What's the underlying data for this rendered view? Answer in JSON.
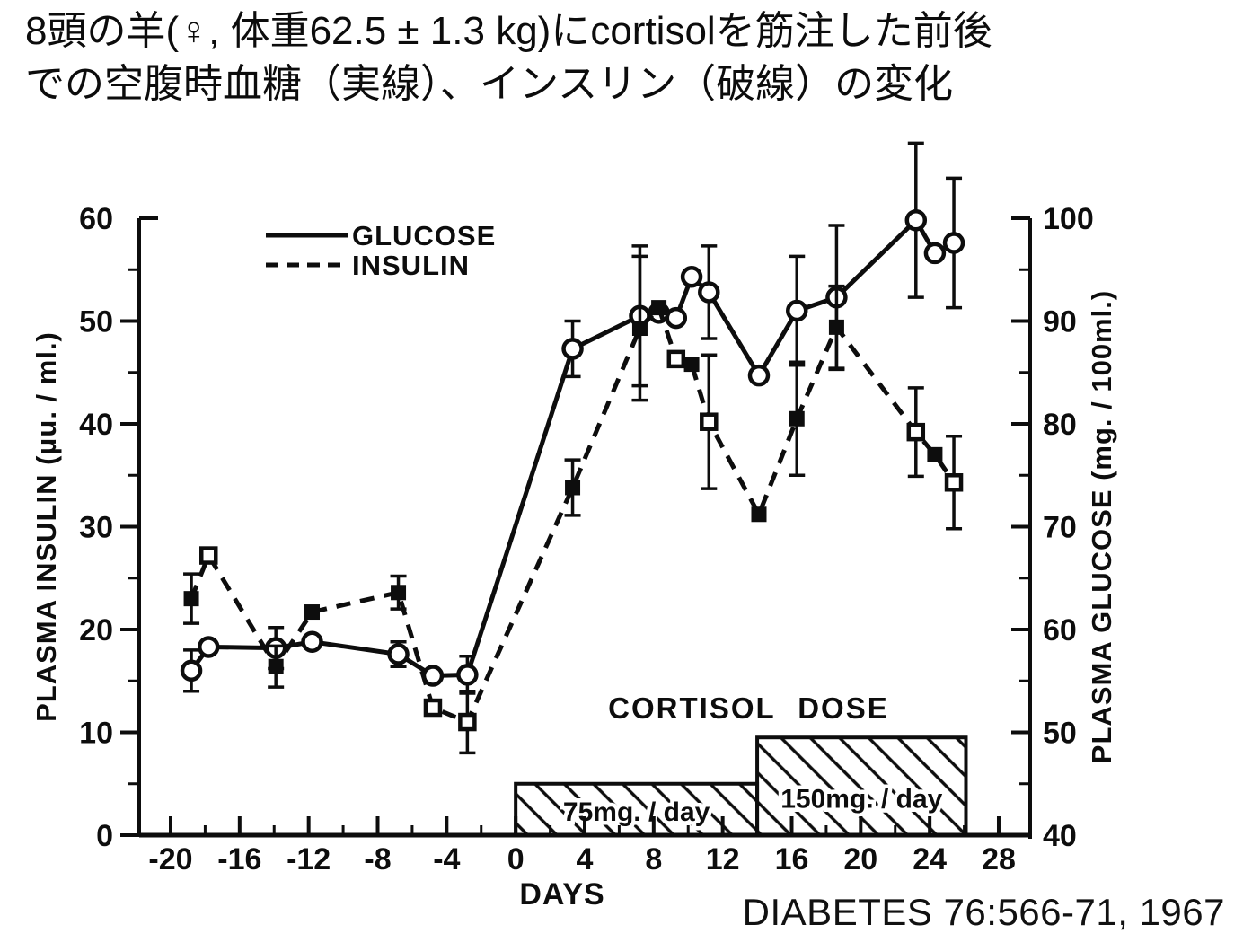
{
  "title": {
    "line1": "8頭の羊(♀, 体重62.5 ± 1.3 kg)にcortisolを筋注した前後",
    "line2": "での空腹時血糖（実線）、インスリン（破線）の変化"
  },
  "citation": "DIABETES 76:566-71, 1967",
  "colors": {
    "ink": "#0d0d0d",
    "background": "#ffffff"
  },
  "chart_data": {
    "type": "line",
    "xlabel": "DAYS",
    "x_axis": {
      "min": -20,
      "max": 28,
      "ticks": [
        -20,
        -16,
        -12,
        -8,
        -4,
        0,
        4,
        8,
        12,
        16,
        20,
        24,
        28
      ],
      "minor_step": 2
    },
    "left_axis": {
      "label": "PLASMA INSULIN (μu. / ml.)",
      "min": 0,
      "max": 60,
      "ticks": [
        0,
        10,
        20,
        30,
        40,
        50,
        60
      ],
      "minor_step": 5
    },
    "right_axis": {
      "label": "PLASMA GLUCOSE (mg. / 100ml.)",
      "min": 40,
      "max": 100,
      "ticks": [
        40,
        50,
        60,
        70,
        80,
        90,
        100
      ],
      "minor_step": 5
    },
    "legend": [
      {
        "label": "GLUCOSE",
        "style": "solid"
      },
      {
        "label": "INSULIN",
        "style": "dashed"
      }
    ],
    "series": [
      {
        "name": "GLUCOSE",
        "axis": "right",
        "line": "solid",
        "marker_default": "open-circle",
        "points": [
          {
            "day": -18.8,
            "value": 56.0,
            "err": 2.0
          },
          {
            "day": -17.8,
            "value": 58.3,
            "err": 0
          },
          {
            "day": -13.9,
            "value": 58.2,
            "err": 2.0
          },
          {
            "day": -11.8,
            "value": 58.8,
            "err": 0
          },
          {
            "day": -6.8,
            "value": 57.6,
            "err": 1.2
          },
          {
            "day": -4.8,
            "value": 55.5,
            "err": 0
          },
          {
            "day": -2.8,
            "value": 55.6,
            "err": 1.8
          },
          {
            "day": 3.3,
            "value": 87.3,
            "err": 2.7
          },
          {
            "day": 7.2,
            "value": 90.5,
            "err": 6.8
          },
          {
            "day": 8.3,
            "value": 90.8,
            "err": 0
          },
          {
            "day": 9.3,
            "value": 90.3,
            "err": 0
          },
          {
            "day": 10.2,
            "value": 94.3,
            "err": 0
          },
          {
            "day": 11.2,
            "value": 92.8,
            "err": 4.5
          },
          {
            "day": 14.1,
            "value": 84.7,
            "err": 0
          },
          {
            "day": 16.3,
            "value": 91.0,
            "err": 5.3
          },
          {
            "day": 18.6,
            "value": 92.3,
            "err": 7.0
          },
          {
            "day": 23.2,
            "value": 99.8,
            "err": 7.5
          },
          {
            "day": 24.3,
            "value": 96.6,
            "err": 0
          },
          {
            "day": 25.4,
            "value": 97.6,
            "err": 6.3
          }
        ]
      },
      {
        "name": "INSULIN",
        "axis": "left",
        "line": "dashed",
        "marker_default": "filled-square",
        "points": [
          {
            "day": -18.8,
            "value": 23.0,
            "err": 2.4,
            "marker": "filled-square"
          },
          {
            "day": -17.8,
            "value": 27.2,
            "err": 0,
            "marker": "open-square"
          },
          {
            "day": -13.9,
            "value": 16.4,
            "err": 2.0,
            "marker": "filled-square"
          },
          {
            "day": -11.8,
            "value": 21.7,
            "err": 0,
            "marker": "filled-square"
          },
          {
            "day": -6.8,
            "value": 23.6,
            "err": 1.6,
            "marker": "filled-square"
          },
          {
            "day": -4.8,
            "value": 12.4,
            "err": 0,
            "marker": "open-square"
          },
          {
            "day": -2.8,
            "value": 11.0,
            "err": 3.0,
            "marker": "open-square"
          },
          {
            "day": 3.3,
            "value": 33.8,
            "err": 2.7,
            "marker": "filled-square"
          },
          {
            "day": 7.2,
            "value": 49.3,
            "err": 7.0,
            "marker": "filled-square"
          },
          {
            "day": 8.3,
            "value": 51.3,
            "err": 0,
            "marker": "filled-square"
          },
          {
            "day": 9.3,
            "value": 46.3,
            "err": 0,
            "marker": "open-square"
          },
          {
            "day": 10.2,
            "value": 45.8,
            "err": 0,
            "marker": "filled-square"
          },
          {
            "day": 11.2,
            "value": 40.2,
            "err": 6.5,
            "marker": "open-square"
          },
          {
            "day": 14.1,
            "value": 31.2,
            "err": 0,
            "marker": "filled-square"
          },
          {
            "day": 16.3,
            "value": 40.5,
            "err": 5.5,
            "marker": "filled-square"
          },
          {
            "day": 18.6,
            "value": 49.4,
            "err": 4.0,
            "marker": "filled-square"
          },
          {
            "day": 23.2,
            "value": 39.2,
            "err": 4.3,
            "marker": "open-square"
          },
          {
            "day": 24.3,
            "value": 37.0,
            "err": 0,
            "marker": "filled-square"
          },
          {
            "day": 25.4,
            "value": 34.3,
            "err": 4.5,
            "marker": "open-square"
          }
        ]
      }
    ],
    "cortisol_dose": {
      "label": "CORTISOL DOSE",
      "boxes": [
        {
          "label": "75mg. / day",
          "day_start": 0,
          "day_end": 14,
          "height_units": 5.0
        },
        {
          "label": "150mg. / day",
          "day_start": 14,
          "day_end": 26.1,
          "height_units": 9.5
        }
      ]
    }
  }
}
